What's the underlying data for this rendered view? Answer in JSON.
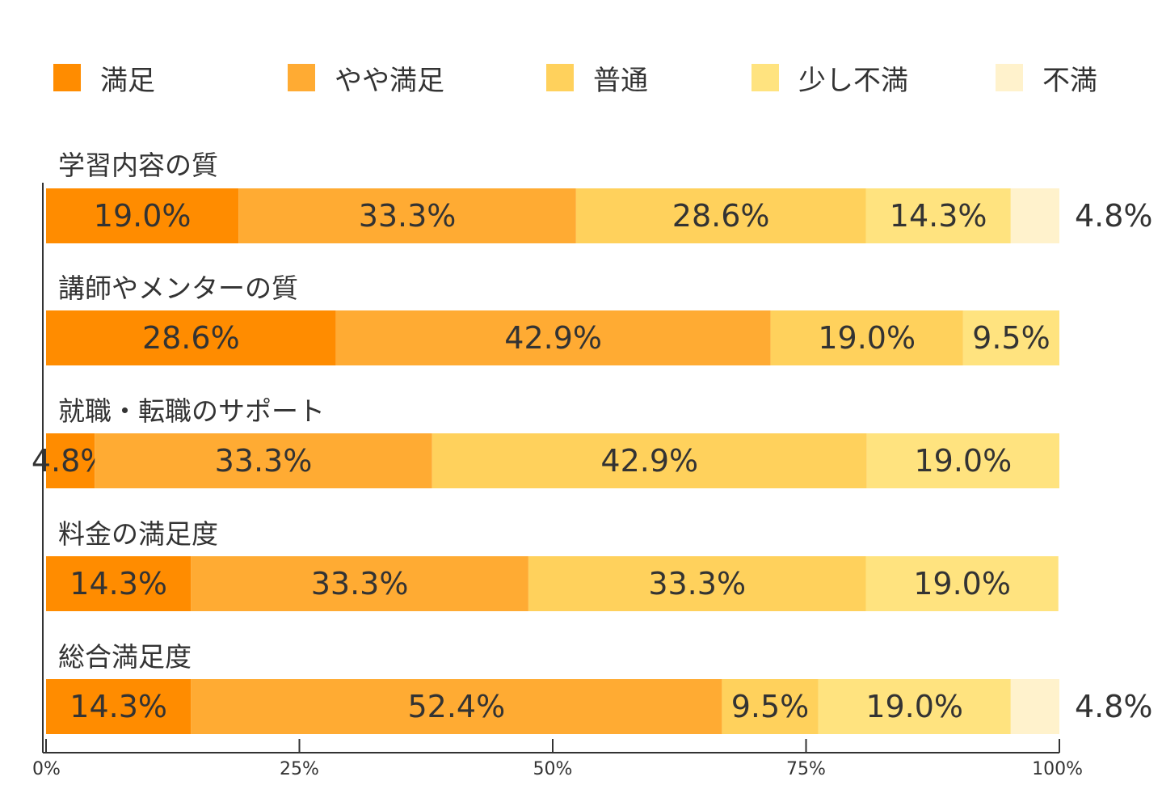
{
  "chart_data": {
    "type": "bar",
    "orientation": "horizontal",
    "stacked": "percent",
    "categories": [
      "学習内容の質",
      "講師やメンターの質",
      "就職・転職のサポート",
      "料金の満足度",
      "総合満足度"
    ],
    "series": [
      {
        "name": "満足",
        "color": "#FF8C00",
        "values": [
          19.0,
          28.6,
          4.8,
          14.3,
          14.3
        ],
        "labels": [
          "19.0%",
          "28.6%",
          "4.8%",
          "14.3%",
          "14.3%"
        ]
      },
      {
        "name": "やや満足",
        "color": "#FFAB33",
        "values": [
          33.3,
          42.9,
          33.3,
          33.3,
          52.4
        ],
        "labels": [
          "33.3%",
          "42.9%",
          "33.3%",
          "33.3%",
          "52.4%"
        ]
      },
      {
        "name": "普通",
        "color": "#FFD15C",
        "values": [
          28.6,
          19.0,
          42.9,
          33.3,
          9.5
        ],
        "labels": [
          "28.6%",
          "19.0%",
          "42.9%",
          "33.3%",
          "9.5%"
        ]
      },
      {
        "name": "少し不満",
        "color": "#FFE37F",
        "values": [
          14.3,
          9.5,
          19.0,
          19.0,
          19.0
        ],
        "labels": [
          "14.3%",
          "9.5%",
          "19.0%",
          "19.0%",
          "19.0%"
        ]
      },
      {
        "name": "不満",
        "color": "#FFF2CC",
        "values": [
          4.8,
          0,
          0,
          0,
          4.8
        ],
        "labels": [
          "4.8%",
          "",
          "",
          "",
          "4.8%"
        ]
      }
    ],
    "xlim": [
      0,
      100
    ],
    "x_ticks": [
      0,
      25,
      50,
      75,
      100
    ],
    "x_tick_labels": [
      "0%",
      "25%",
      "50%",
      "75%",
      "100%"
    ],
    "legend": "top",
    "grid": false
  }
}
